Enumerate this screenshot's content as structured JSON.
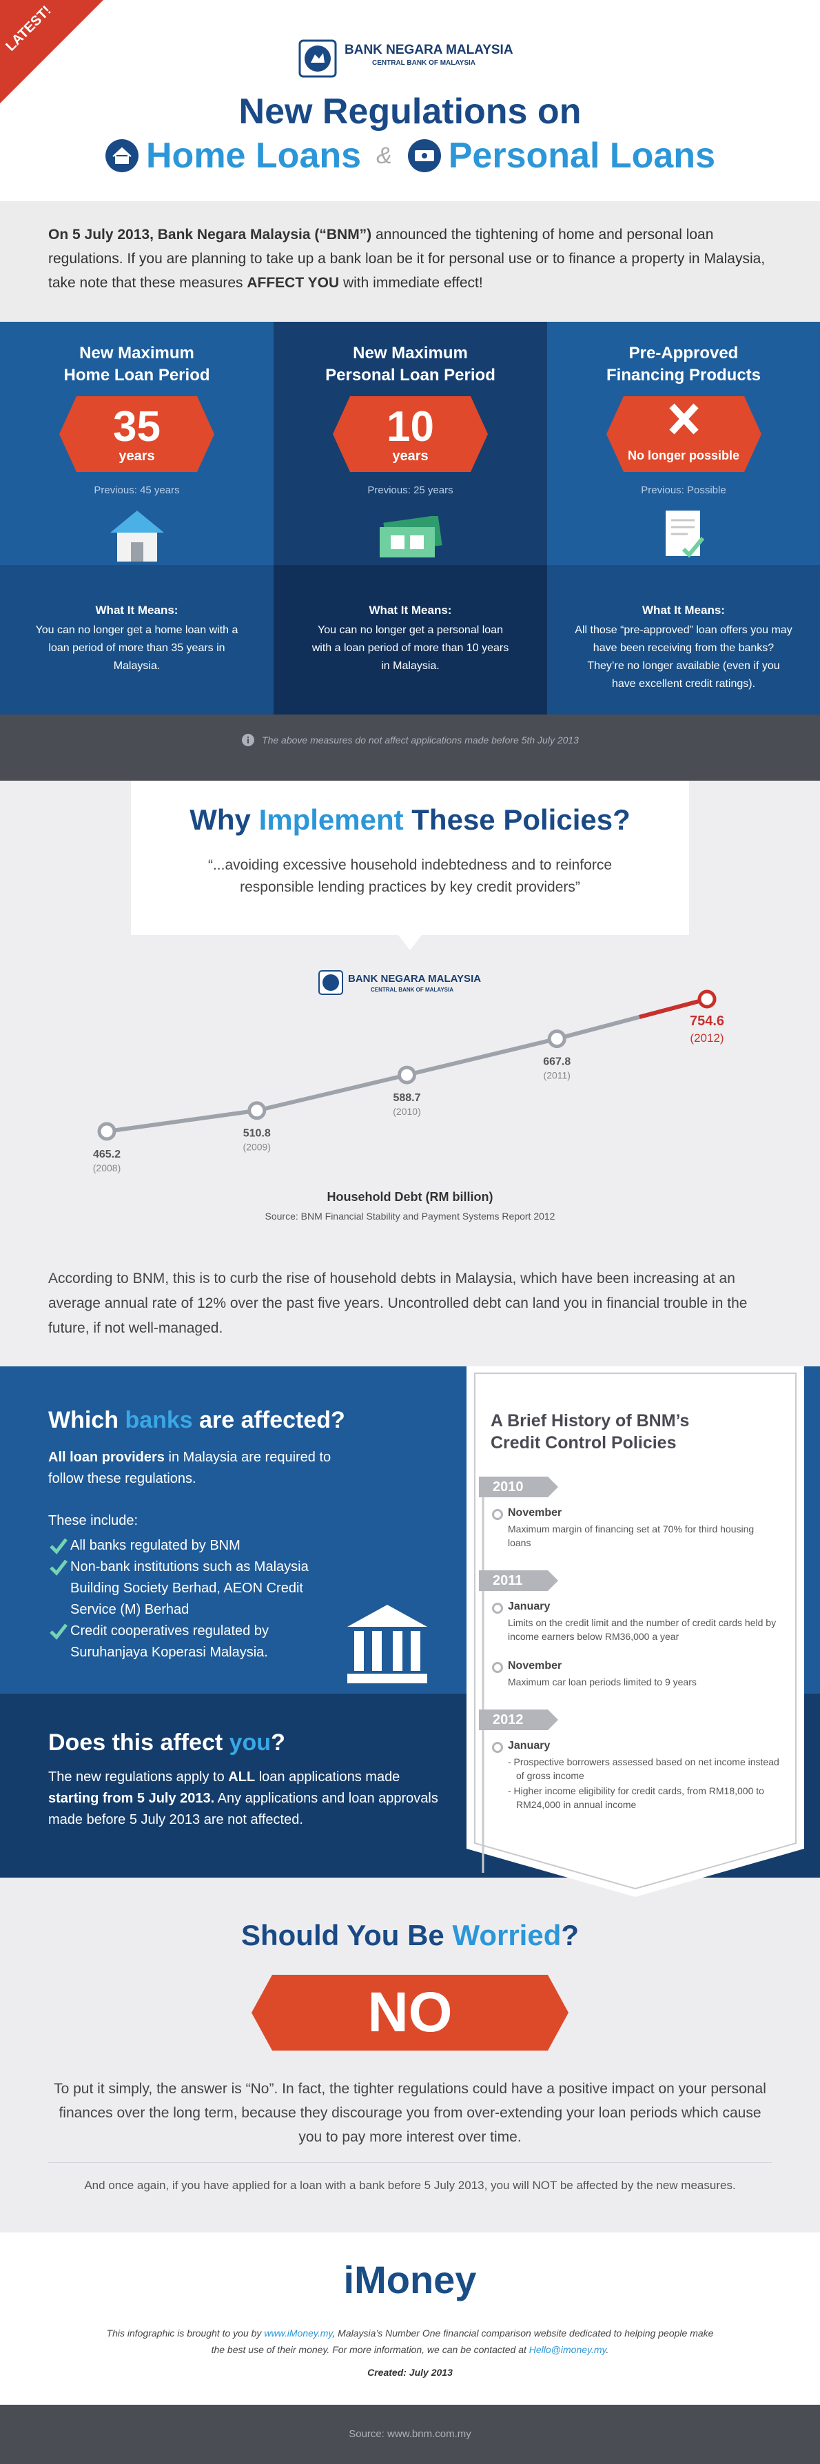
{
  "badge": "LATEST!",
  "logo": {
    "name": "BANK NEGARA MALAYSIA",
    "sub": "CENTRAL BANK OF MALAYSIA"
  },
  "header": {
    "title_line1": "New Regulations on",
    "home": "Home Loans",
    "amp": "&",
    "personal": "Personal Loans"
  },
  "intro": [
    "On 5 July 2013, Bank Negara Malaysia (“BNM”)",
    " announced the tightening of home and personal loan regulations. If you are planning to take up a bank loan be it for personal use or to finance a property in Malaysia, take note that these measures ",
    "AFFECT YOU",
    " with immediate effect!"
  ],
  "measures": [
    {
      "title": [
        "New Maximum",
        "Home Loan Period"
      ],
      "value": "35",
      "unit": "years",
      "previous": "Previous: 45 years",
      "means_title": "What It Means:",
      "means": "You can no longer get a home loan with a loan period of more than 35 years in Malaysia."
    },
    {
      "title": [
        "New Maximum",
        "Personal Loan Period"
      ],
      "value": "10",
      "unit": "years",
      "previous": "Previous: 25 years",
      "means_title": "What It Means:",
      "means": "You can no longer get a personal loan with a loan period of more than 10 years in Malaysia."
    },
    {
      "title": [
        "Pre-Approved",
        "Financing Products"
      ],
      "unit": "No longer possible",
      "previous": "Previous: Possible",
      "means_title": "What It Means:",
      "means": "All those “pre-approved” loan offers you may have been receiving from the banks? They’re no longer available (even if you have excellent credit ratings)."
    }
  ],
  "note": "The above measures do not affect applications made before 5th July 2013",
  "why": {
    "title": [
      "Why ",
      "Implement",
      " These Policies?"
    ],
    "quote": "“...avoiding excessive household indebtedness and to reinforce responsible lending practices by key credit providers”"
  },
  "chart_logo": {
    "name": "BANK NEGARA MALAYSIA",
    "sub": "CENTRAL BANK OF MALAYSIA"
  },
  "chart_data": {
    "type": "line",
    "title": "Household Debt (RM billion)",
    "source": "Source: BNM Financial Stability and Payment Systems Report 2012",
    "categories": [
      "(2008)",
      "(2009)",
      "(2010)",
      "(2011)",
      "(2012)"
    ],
    "values": [
      465.2,
      510.8,
      588.7,
      667.8,
      754.6
    ],
    "color": "#9ea3ab",
    "highlight_color": "#c8312b"
  },
  "paragraph": "According to BNM, this is to curb the rise of household debts in Malaysia, which have been increasing at an average annual rate of 12% over the past five years. Uncontrolled debt can land you in financial trouble in the future, if not well-managed.",
  "banks": {
    "title": [
      "Which ",
      "banks",
      " are affected?"
    ],
    "intro": [
      "All loan providers",
      " in Malaysia are required to follow these regulations."
    ],
    "include": "These include:",
    "items": [
      "All banks regulated by BNM",
      "Non-bank institutions such as Malaysia Building Society Berhad, AEON Credit Service (M) Berhad",
      "Credit cooperatives regulated by Suruhanjaya Koperasi Malaysia."
    ]
  },
  "affect": {
    "title": [
      "Does this affect ",
      "you",
      "?"
    ],
    "text": [
      "The new regulations apply to ",
      "ALL",
      " loan applications made ",
      "starting from 5 July 2013.",
      " Any applications and loan approvals made before 5 July 2013 are not affected."
    ]
  },
  "history": {
    "title": [
      "A Brief History of BNM’s",
      "Credit Control Policies"
    ],
    "years": [
      {
        "year": "2010",
        "entries": [
          {
            "month": "November",
            "text": [
              "Maximum margin of financing set at 70% for third housing loans"
            ]
          }
        ]
      },
      {
        "year": "2011",
        "entries": [
          {
            "month": "January",
            "text": [
              "Limits on the credit limit and the number of credit cards held by income earners below RM36,000 a year"
            ]
          },
          {
            "month": "November",
            "text": [
              "Maximum car loan periods limited to 9 years"
            ]
          }
        ]
      },
      {
        "year": "2012",
        "entries": [
          {
            "month": "January",
            "text": [
              "- Prospective borrowers assessed based on net income instead of gross income",
              "- Higher income eligibility for credit cards, from RM18,000 to RM24,000 in annual income"
            ]
          }
        ]
      }
    ]
  },
  "worried": {
    "title": [
      "Should You Be ",
      "Worried",
      "?"
    ],
    "answer": "NO",
    "text": "To put it simply, the answer is “No”. In fact, the tighter regulations could have a positive impact on your personal finances over the long term, because they discourage you from over-extending your loan periods which cause you to pay more interest over time.",
    "note": "And once again, if you have applied for a loan with a bank before 5 July 2013, you will NOT be affected by the new measures."
  },
  "footer": {
    "logo": "iMoney",
    "text": [
      "This infographic is brought to you by ",
      "www.iMoney.my",
      ", Malaysia’s Number One financial comparison website dedicated to helping people make the best use of their money. For more information, we can be contacted at ",
      "Hello@imoney.my",
      "."
    ],
    "created": "Created: July 2013"
  },
  "source": "Source: www.bnm.com.my"
}
